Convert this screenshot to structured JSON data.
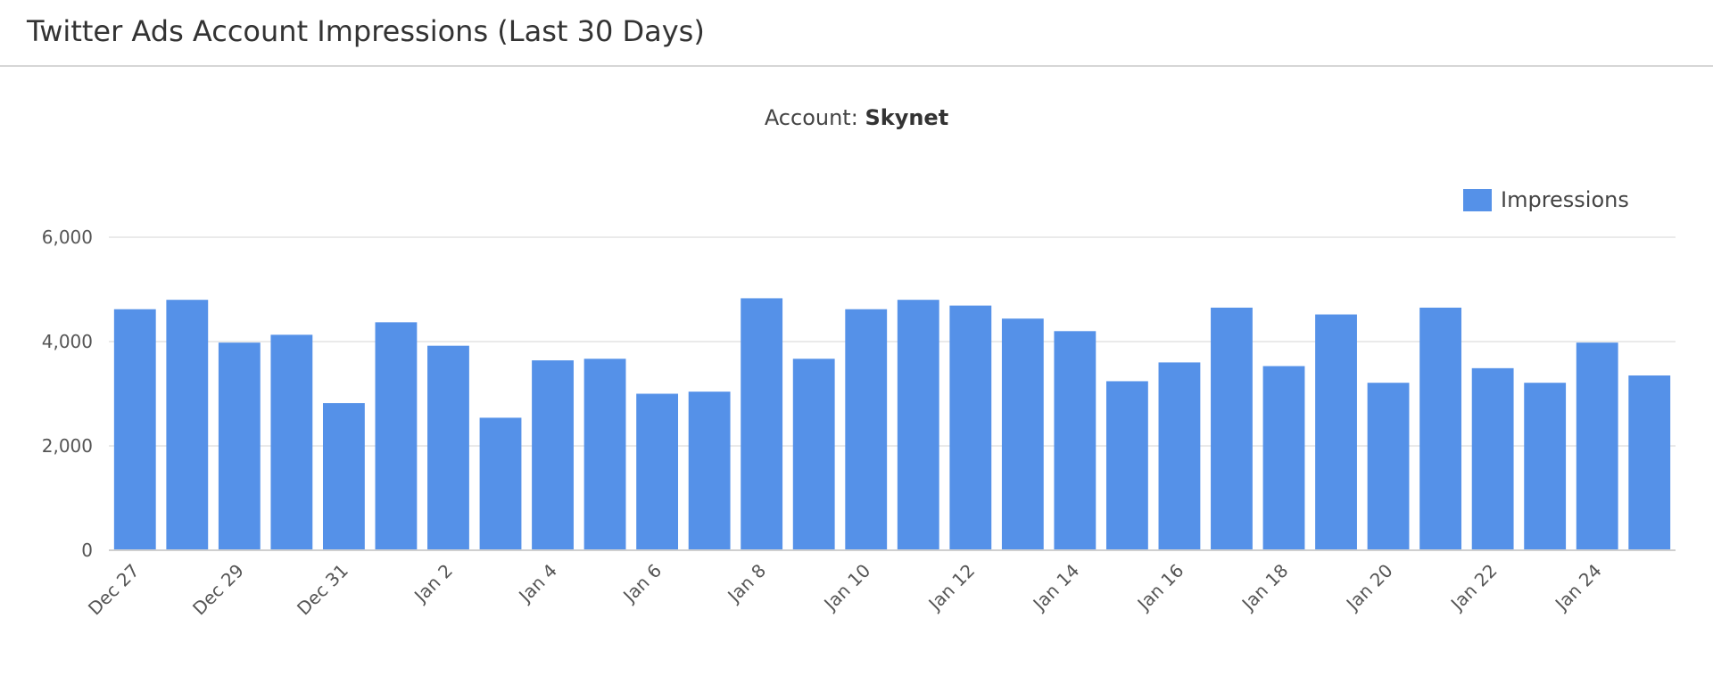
{
  "header": {
    "title": "Twitter Ads Account Impressions (Last 30 Days)"
  },
  "subtitle": {
    "label": "Account:",
    "account": "Skynet"
  },
  "colors": {
    "bar": "#5591e8",
    "grid": "#e4e4e4",
    "axis": "#cfcfcf"
  },
  "chart_data": {
    "type": "bar",
    "ylim": [
      0,
      6000
    ],
    "yticks": [
      0,
      2000,
      4000,
      6000
    ],
    "ytick_labels": [
      "0",
      "2,000",
      "4,000",
      "6,000"
    ],
    "grid": true,
    "legend_position": "top-right",
    "categories": [
      "Dec 27",
      "Dec 28",
      "Dec 29",
      "Dec 30",
      "Dec 31",
      "Jan 1",
      "Jan 2",
      "Jan 3",
      "Jan 4",
      "Jan 5",
      "Jan 6",
      "Jan 7",
      "Jan 8",
      "Jan 9",
      "Jan 10",
      "Jan 11",
      "Jan 12",
      "Jan 13",
      "Jan 14",
      "Jan 15",
      "Jan 16",
      "Jan 17",
      "Jan 18",
      "Jan 19",
      "Jan 20",
      "Jan 21",
      "Jan 22",
      "Jan 23",
      "Jan 24",
      "Jan 25"
    ],
    "xtick_labels": [
      "Dec 27",
      "",
      "Dec 29",
      "",
      "Dec 31",
      "",
      "Jan 2",
      "",
      "Jan 4",
      "",
      "Jan 6",
      "",
      "Jan 8",
      "",
      "Jan 10",
      "",
      "Jan 12",
      "",
      "Jan 14",
      "",
      "Jan 16",
      "",
      "Jan 18",
      "",
      "Jan 20",
      "",
      "Jan 22",
      "",
      "Jan 24",
      ""
    ],
    "series": [
      {
        "name": "Impressions",
        "values": [
          4620,
          4800,
          3980,
          4130,
          2820,
          4370,
          3920,
          2540,
          3640,
          3670,
          3000,
          3040,
          4830,
          3670,
          4620,
          4800,
          4690,
          4440,
          4200,
          3240,
          3600,
          4650,
          3530,
          4520,
          3210,
          4650,
          3490,
          3210,
          3980,
          3350
        ]
      }
    ]
  }
}
